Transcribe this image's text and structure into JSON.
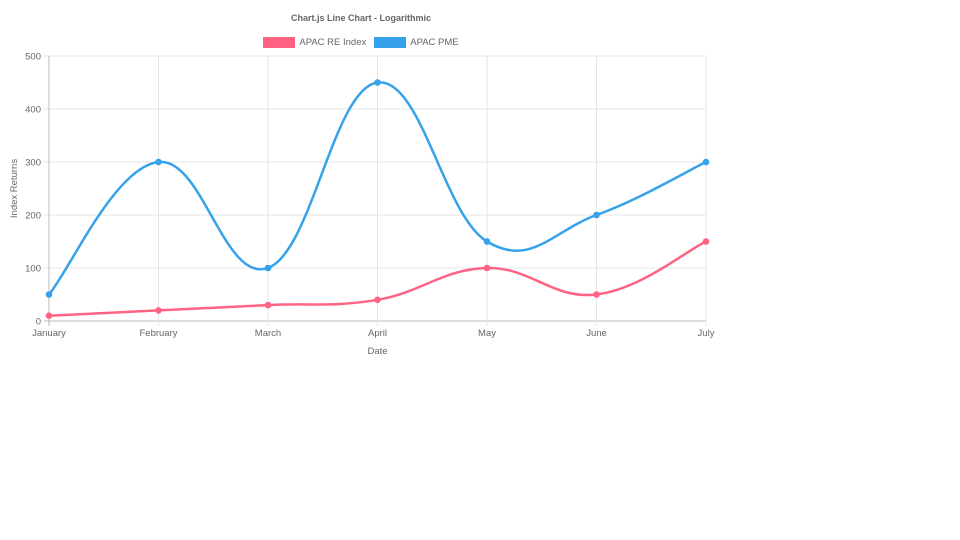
{
  "chart_data": {
    "type": "line",
    "title": "Chart.js Line Chart - Logarithmic",
    "xlabel": "Date",
    "ylabel": "Index Returns",
    "categories": [
      "January",
      "February",
      "March",
      "April",
      "May",
      "June",
      "July"
    ],
    "series": [
      {
        "name": "APAC RE Index",
        "color": "#ff6384",
        "values": [
          10,
          20,
          30,
          40,
          100,
          50,
          150
        ]
      },
      {
        "name": "APAC PME",
        "color": "#36a2eb",
        "values": [
          50,
          300,
          100,
          450,
          150,
          200,
          300
        ]
      }
    ],
    "yticks": [
      0,
      100,
      200,
      300,
      400,
      500
    ],
    "ylim": [
      0,
      500
    ],
    "grid": true,
    "legend_position": "top",
    "curve": "smooth"
  }
}
